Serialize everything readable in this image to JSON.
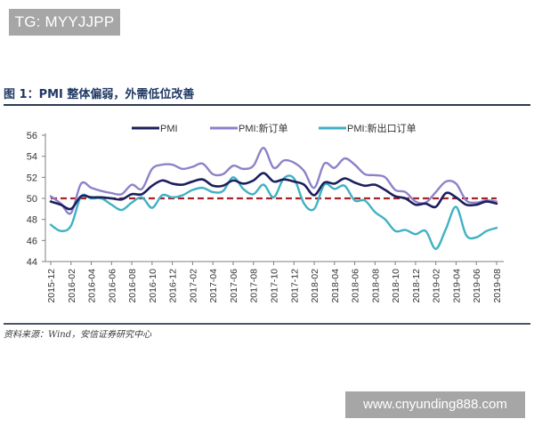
{
  "watermarks": {
    "top": "TG: MYYJJPP",
    "bottom": "www.cnyunding888.com"
  },
  "figure": {
    "title": "图 1：PMI 整体偏弱，外需低位改善",
    "source": "资料来源：Wind，安信证券研究中心"
  },
  "colors": {
    "pmi": "#1c1f5e",
    "new_orders": "#8d82c8",
    "new_export_orders": "#3fb1c4",
    "reference_line": "#a8232a",
    "title": "#1f3864"
  },
  "chart_data": {
    "type": "line",
    "title": "PMI 整体偏弱，外需低位改善",
    "xlabel": "",
    "ylabel": "",
    "ylim": [
      44,
      56
    ],
    "yticks": [
      44,
      46,
      48,
      50,
      52,
      54,
      56
    ],
    "grid": false,
    "legend_position": "top",
    "x_tick_labels": [
      "2015-12",
      "2016-02",
      "2016-04",
      "2016-06",
      "2016-08",
      "2016-10",
      "2016-12",
      "2017-02",
      "2017-04",
      "2017-06",
      "2017-08",
      "2017-10",
      "2017-12",
      "2018-02",
      "2018-04",
      "2018-06",
      "2018-08",
      "2018-10",
      "2018-12",
      "2019-02",
      "2019-04",
      "2019-06",
      "2019-08"
    ],
    "x": [
      "2015-12",
      "2016-01",
      "2016-02",
      "2016-03",
      "2016-04",
      "2016-05",
      "2016-06",
      "2016-07",
      "2016-08",
      "2016-09",
      "2016-10",
      "2016-11",
      "2016-12",
      "2017-01",
      "2017-02",
      "2017-03",
      "2017-04",
      "2017-05",
      "2017-06",
      "2017-07",
      "2017-08",
      "2017-09",
      "2017-10",
      "2017-11",
      "2017-12",
      "2018-01",
      "2018-02",
      "2018-03",
      "2018-04",
      "2018-05",
      "2018-06",
      "2018-07",
      "2018-08",
      "2018-09",
      "2018-10",
      "2018-11",
      "2018-12",
      "2019-01",
      "2019-02",
      "2019-03",
      "2019-04",
      "2019-05",
      "2019-06",
      "2019-07",
      "2019-08"
    ],
    "series": [
      {
        "name": "PMI",
        "values": [
          49.7,
          49.4,
          49.0,
          50.2,
          50.1,
          50.1,
          50.0,
          49.9,
          50.4,
          50.4,
          51.2,
          51.7,
          51.4,
          51.3,
          51.6,
          51.8,
          51.2,
          51.2,
          51.7,
          51.4,
          51.7,
          52.4,
          51.6,
          51.8,
          51.6,
          51.3,
          50.3,
          51.5,
          51.4,
          51.9,
          51.5,
          51.2,
          51.3,
          50.8,
          50.2,
          50.0,
          49.4,
          49.5,
          49.2,
          50.5,
          50.1,
          49.4,
          49.4,
          49.7,
          49.5
        ]
      },
      {
        "name": "PMI:新订单",
        "values": [
          50.2,
          49.5,
          48.6,
          51.4,
          51.0,
          50.7,
          50.5,
          50.4,
          51.3,
          50.9,
          52.8,
          53.2,
          53.2,
          52.8,
          53.0,
          53.3,
          52.3,
          52.3,
          53.1,
          52.8,
          53.1,
          54.8,
          52.9,
          53.6,
          53.4,
          52.6,
          51.0,
          53.3,
          52.9,
          53.8,
          53.2,
          52.3,
          52.2,
          52.0,
          50.8,
          50.6,
          49.7,
          49.6,
          50.6,
          51.6,
          51.4,
          49.8,
          49.6,
          49.8,
          49.7
        ]
      },
      {
        "name": "PMI:新出口订单",
        "values": [
          47.5,
          46.9,
          47.4,
          50.2,
          50.0,
          50.0,
          49.4,
          48.9,
          49.6,
          50.1,
          49.1,
          50.3,
          50.1,
          50.3,
          50.8,
          51.0,
          50.6,
          50.7,
          52.0,
          50.9,
          50.4,
          51.3,
          50.1,
          51.9,
          51.9,
          49.5,
          49.0,
          51.3,
          50.9,
          51.2,
          49.8,
          49.8,
          48.7,
          48.0,
          46.9,
          47.0,
          46.6,
          46.9,
          45.2,
          47.1,
          49.2,
          46.5,
          46.3,
          46.9,
          47.2
        ]
      }
    ],
    "reference_line": {
      "y": 50,
      "style": "dashed",
      "color": "#a8232a"
    }
  }
}
